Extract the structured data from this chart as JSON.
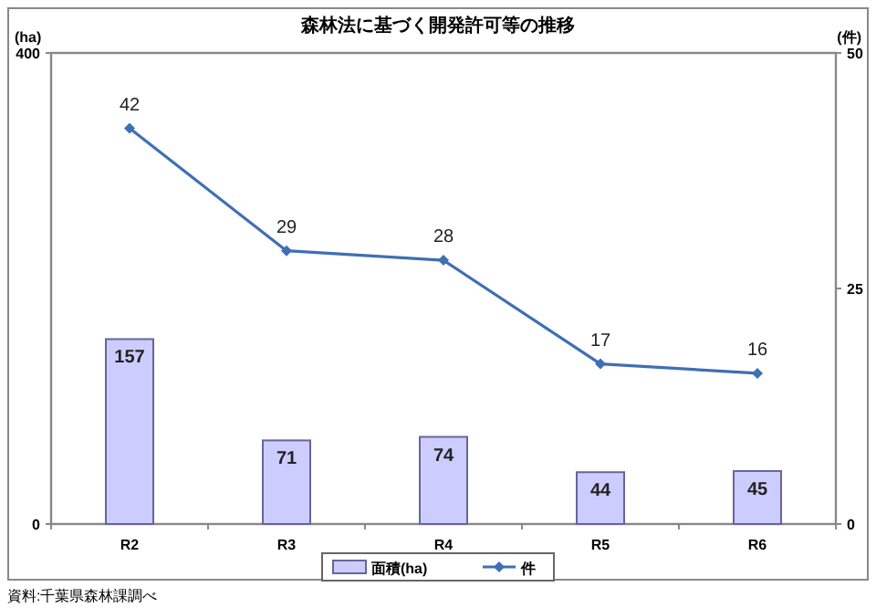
{
  "chart_data": {
    "type": "bar",
    "title": "森林法に基づく開発許可等の推移",
    "categories": [
      "R2",
      "R3",
      "R4",
      "R5",
      "R6"
    ],
    "series": [
      {
        "name": "面積(ha)",
        "color": "#ccccff",
        "values": [
          157,
          71,
          74,
          44,
          45
        ]
      },
      {
        "name": "件",
        "type": "line",
        "axis": "y2",
        "color": "#3f6fb5",
        "marker": "diamond",
        "values": [
          42,
          29,
          28,
          17,
          16
        ]
      }
    ],
    "ylabel": "(ha)",
    "y2label": "(件)",
    "ylim": [
      0,
      400
    ],
    "yticks": [
      0,
      400
    ],
    "y2lim": [
      0,
      50
    ],
    "y2ticks": [
      0,
      25,
      50
    ],
    "data_labels": true,
    "legend": "bottom",
    "annotations": [
      "資料:千葉県森林課調べ"
    ]
  }
}
